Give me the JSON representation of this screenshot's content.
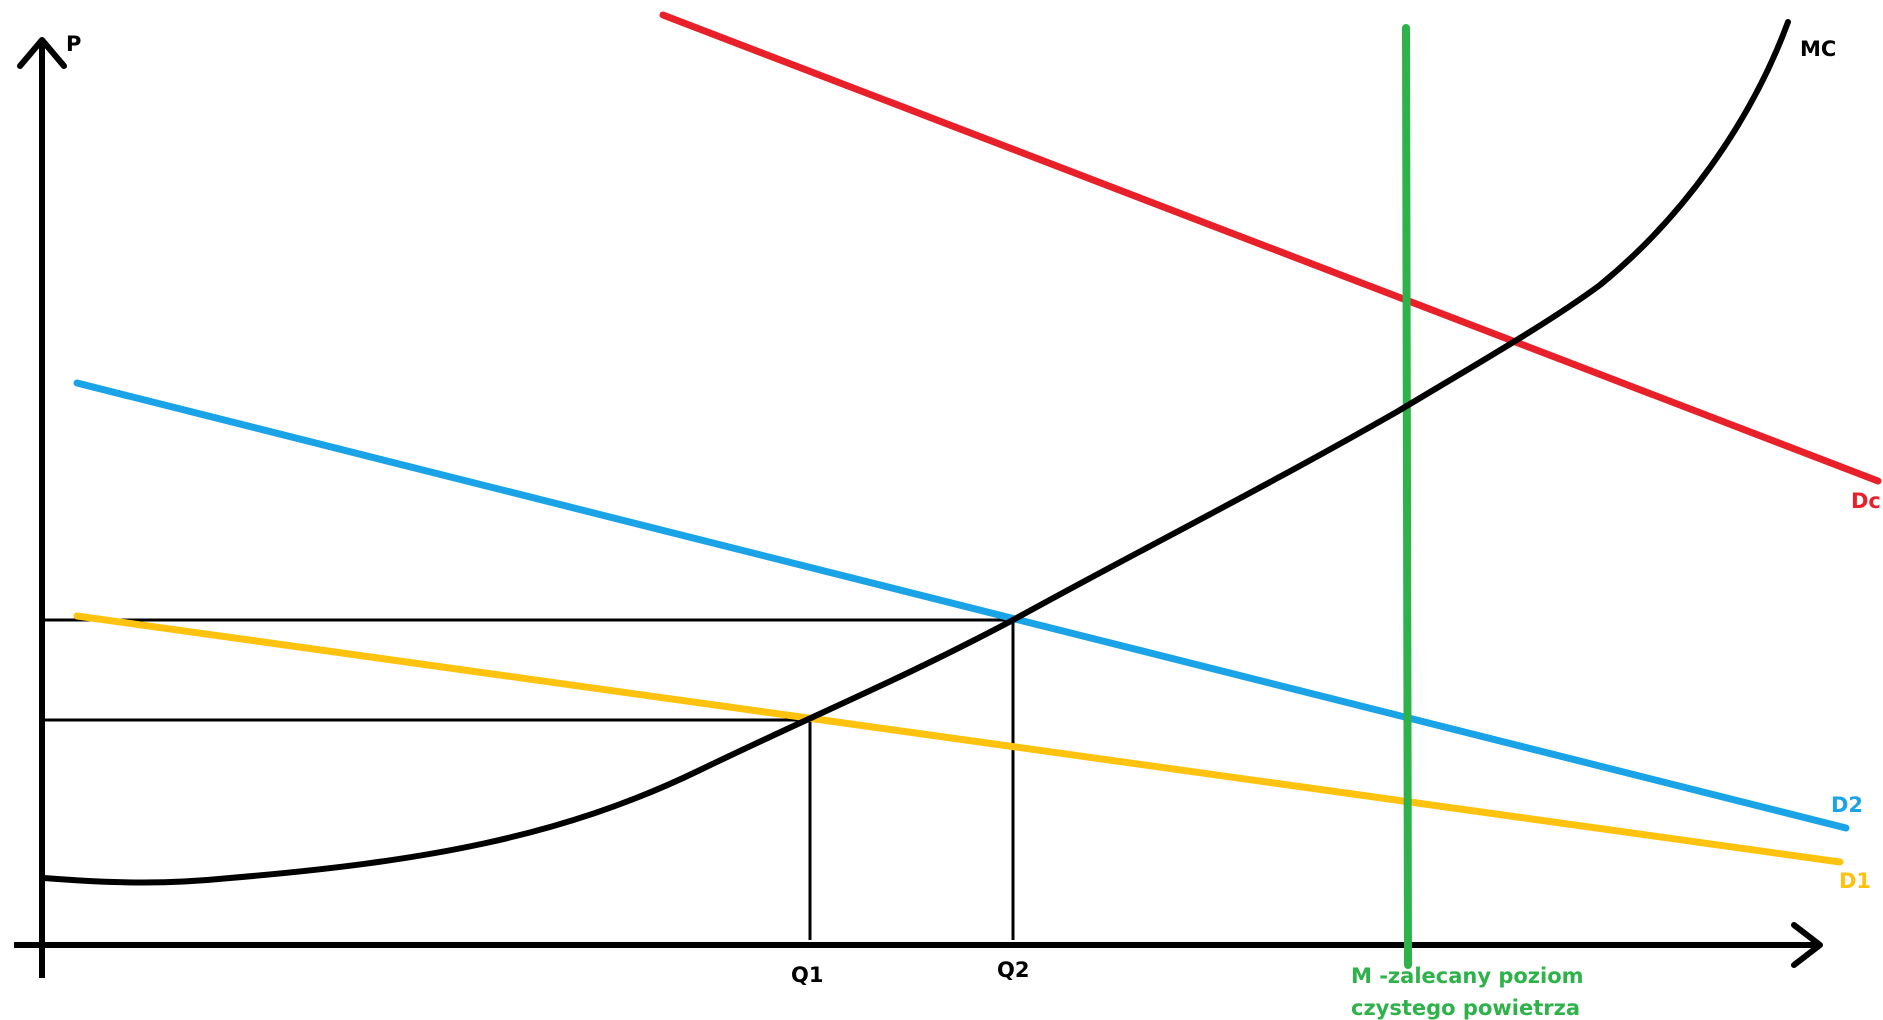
{
  "chart_data": {
    "type": "line",
    "title": "",
    "xlabel": "",
    "ylabel": "P",
    "curves": [
      {
        "name": "MC",
        "color": "#000000",
        "shape": "increasing-convex"
      },
      {
        "name": "Dc",
        "color": "#e8202a",
        "shape": "downward-line"
      },
      {
        "name": "D2",
        "color": "#1aa3e6",
        "shape": "downward-line"
      },
      {
        "name": "D1",
        "color": "#ffc20e",
        "shape": "downward-line"
      }
    ],
    "vertical_line": {
      "color": "#2eb24a"
    },
    "x_ticks": [
      "Q1",
      "Q2"
    ],
    "annotation": [
      "M -zalecany poziom",
      "czystego powietrza"
    ]
  }
}
